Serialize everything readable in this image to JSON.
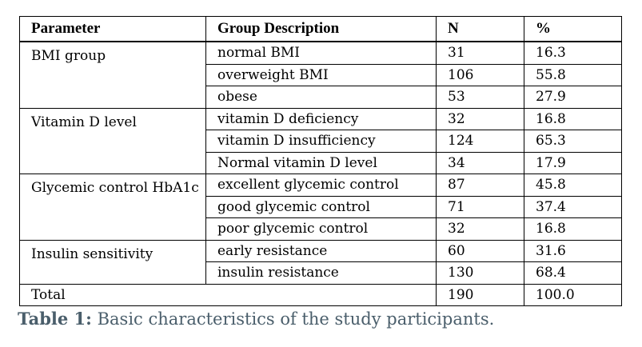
{
  "table": {
    "headers": [
      "Parameter",
      "Group Description",
      "N",
      "%"
    ],
    "groups": [
      {
        "parameter": "BMI group",
        "rows": [
          {
            "group": "normal BMI",
            "n": "31",
            "pct": "16.3"
          },
          {
            "group": "overweight BMI",
            "n": "106",
            "pct": "55.8"
          },
          {
            "group": "obese",
            "n": "53",
            "pct": "27.9"
          }
        ]
      },
      {
        "parameter": "Vitamin D level",
        "rows": [
          {
            "group": "vitamin D deficiency",
            "n": "32",
            "pct": "16.8"
          },
          {
            "group": "vitamin D insufficiency",
            "n": "124",
            "pct": "65.3"
          },
          {
            "group": "Normal vitamin D level",
            "n": "34",
            "pct": "17.9"
          }
        ]
      },
      {
        "parameter": "Glycemic control HbA1c",
        "rows": [
          {
            "group": "excellent glycemic control",
            "n": "87",
            "pct": "45.8"
          },
          {
            "group": "good glycemic control",
            "n": "71",
            "pct": "37.4"
          },
          {
            "group": "poor glycemic control",
            "n": "32",
            "pct": "16.8"
          }
        ]
      },
      {
        "parameter": "Insulin sensitivity",
        "rows": [
          {
            "group": "early resistance",
            "n": "60",
            "pct": "31.6"
          },
          {
            "group": "insulin resistance",
            "n": "130",
            "pct": "68.4"
          }
        ]
      }
    ],
    "total": {
      "label": "Total",
      "n": "190",
      "pct": "100.0"
    }
  },
  "caption": {
    "label": "Table 1:",
    "text": " Basic characteristics of the study participants.",
    "color": "#4a5e6b"
  }
}
